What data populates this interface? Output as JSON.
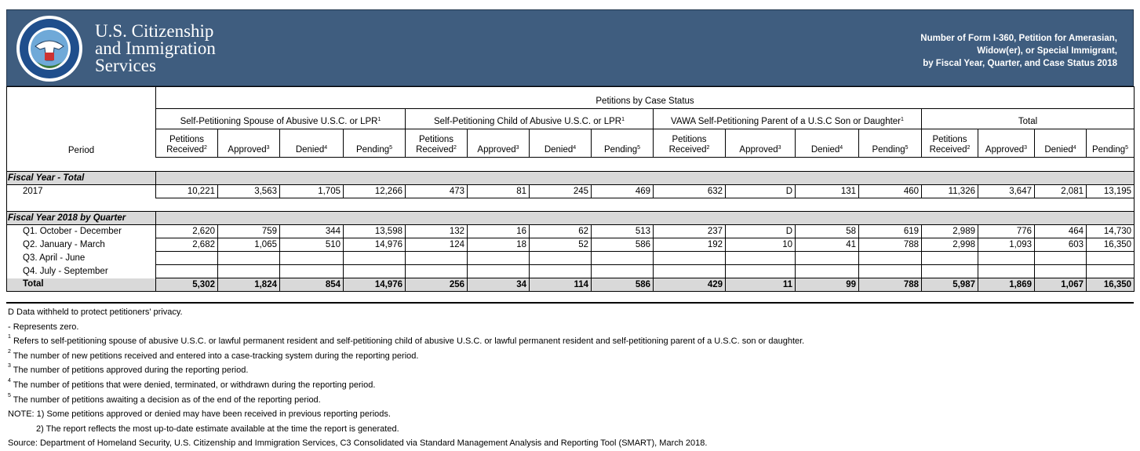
{
  "header": {
    "agency": [
      "U.S. Citizenship",
      "and Immigration",
      "Services"
    ],
    "report_title": [
      "Number of Form I-360, Petition for Amerasian,",
      "Widow(er), or Special Immigrant,",
      "by Fiscal Year, Quarter, and Case Status 2018"
    ]
  },
  "table": {
    "super_header": "Petitions by Case Status",
    "period_header": "Period",
    "groups": [
      {
        "label": "Self-Petitioning Spouse of Abusive U.S.C. or LPR",
        "note": "1"
      },
      {
        "label": "Self-Petitioning Child of Abusive U.S.C. or LPR",
        "note": "1"
      },
      {
        "label": "VAWA Self-Petitioning Parent of a U.S.C Son or Daughter",
        "note": "1"
      },
      {
        "label": "Total"
      }
    ],
    "columns": [
      {
        "lines": [
          "Petitions",
          "Received"
        ],
        "note": "2"
      },
      {
        "lines": [
          "Approved"
        ],
        "note": "3"
      },
      {
        "lines": [
          "Denied"
        ],
        "note": "4"
      },
      {
        "lines": [
          "Pending"
        ],
        "note": "5"
      },
      {
        "lines": [
          "Petitions",
          "Received"
        ],
        "note": "2"
      },
      {
        "lines": [
          "Approved"
        ],
        "note": "3"
      },
      {
        "lines": [
          "Denied"
        ],
        "note": "4"
      },
      {
        "lines": [
          "Pending"
        ],
        "note": "5"
      },
      {
        "lines": [
          "Petitions",
          "Received"
        ],
        "note": "2"
      },
      {
        "lines": [
          "Approved"
        ],
        "note": "3"
      },
      {
        "lines": [
          "Denied"
        ],
        "note": "4"
      },
      {
        "lines": [
          "Pending"
        ],
        "note": "5"
      },
      {
        "lines": [
          "Petitions",
          "Received"
        ],
        "note": "2"
      },
      {
        "lines": [
          "Approved"
        ],
        "note": "3"
      },
      {
        "lines": [
          "Denied"
        ],
        "note": "4"
      },
      {
        "lines": [
          "Pending"
        ],
        "note": "5"
      }
    ],
    "sections": [
      {
        "label": "Fiscal Year - Total",
        "rows": [
          {
            "period": "2017",
            "cells": [
              "10,221",
              "3,563",
              "1,705",
              "12,266",
              "473",
              "81",
              "245",
              "469",
              "632",
              "D",
              "131",
              "460",
              "11,326",
              "3,647",
              "2,081",
              "13,195"
            ]
          }
        ]
      },
      {
        "label": "Fiscal Year 2018 by Quarter",
        "rows": [
          {
            "period": "Q1. October - December",
            "cells": [
              "2,620",
              "759",
              "344",
              "13,598",
              "132",
              "16",
              "62",
              "513",
              "237",
              "D",
              "58",
              "619",
              "2,989",
              "776",
              "464",
              "14,730"
            ]
          },
          {
            "period": "Q2. January - March",
            "cells": [
              "2,682",
              "1,065",
              "510",
              "14,976",
              "124",
              "18",
              "52",
              "586",
              "192",
              "10",
              "41",
              "788",
              "2,998",
              "1,093",
              "603",
              "16,350"
            ]
          },
          {
            "period": "Q3. April - June",
            "cells": [
              null,
              null,
              null,
              null,
              null,
              null,
              null,
              null,
              null,
              null,
              null,
              null,
              null,
              null,
              null,
              null
            ]
          },
          {
            "period": "Q4. July - September",
            "cells": [
              null,
              null,
              null,
              null,
              null,
              null,
              null,
              null,
              null,
              null,
              null,
              null,
              null,
              null,
              null,
              null
            ]
          }
        ],
        "total": {
          "period": "Total",
          "cells": [
            "5,302",
            "1,824",
            "854",
            "14,976",
            "256",
            "34",
            "114",
            "586",
            "429",
            "11",
            "99",
            "788",
            "5,987",
            "1,869",
            "1,067",
            "16,350"
          ]
        }
      }
    ]
  },
  "footnotes": [
    {
      "text": "D  Data withheld to protect petitioners' privacy."
    },
    {
      "text": "- Represents zero."
    },
    {
      "sup": "1",
      "text": "Refers to self-petitioning spouse of abusive U.S.C. or lawful permanent resident and self-petitioning child of abusive U.S.C. or lawful permanent resident and self-petitioning parent of a U.S.C. son or daughter."
    },
    {
      "sup": "2",
      "text": "The number of new petitions received and entered into a case-tracking system during the reporting period."
    },
    {
      "sup": "3",
      "text": "The number of petitions approved during the reporting period."
    },
    {
      "sup": "4",
      "text": "The number of petitions that were denied, terminated, or withdrawn during the reporting period."
    },
    {
      "sup": "5",
      "text": "The number of petitions awaiting a decision as of the end of the reporting period."
    },
    {
      "text": "NOTE: 1) Some petitions approved or denied may have been received in previous reporting periods."
    },
    {
      "text": "2) The report reflects the most up-to-date estimate available at the time the report is generated."
    },
    {
      "text": "Source:  Department of Homeland Security, U.S. Citizenship and Immigration Services, C3 Consolidated via Standard Management Analysis and Reporting Tool (SMART), March 2018."
    }
  ]
}
